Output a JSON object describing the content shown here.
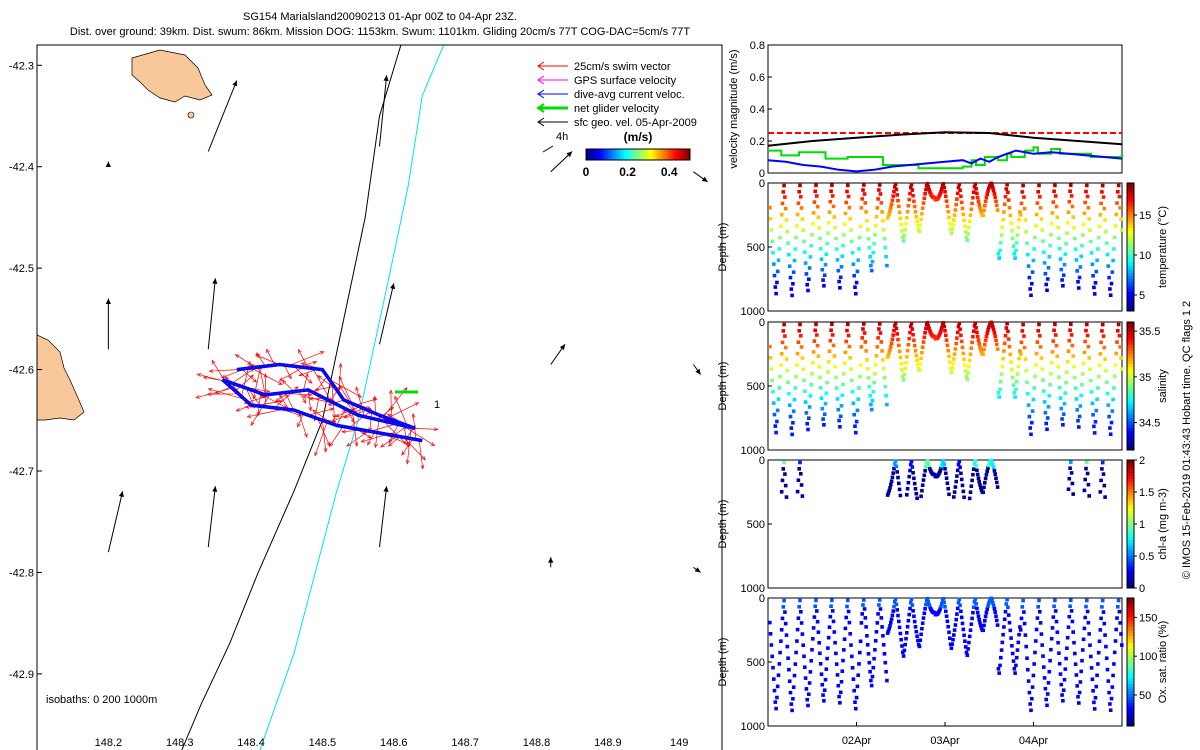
{
  "header": {
    "line1": "SG154 Marialsland20090213 01-Apr 00Z to 04-Apr 23Z.",
    "line2": "Dist. over ground: 39km. Dist. swum: 86km. Mission DOG: 1153km. Swum: 1101km. Gliding 20cm/s 77T COG-DAC=5cm/s 77T"
  },
  "map": {
    "legend": [
      {
        "label": "25cm/s swim vector",
        "color": "#ff0000"
      },
      {
        "label": "GPS surface velocity",
        "color": "#ff00ff"
      },
      {
        "label": "dive-avg current veloc.",
        "color": "#0000ff"
      },
      {
        "label": "net glider velocity",
        "color": "#00dd00"
      },
      {
        "label": "sfc geo. vel. 05-Apr-2009",
        "color": "#000000"
      }
    ],
    "colorbar": {
      "title": "(m/s)",
      "tick_labels": [
        "0",
        "0.2",
        "0.4"
      ],
      "min": 0,
      "max": 0.5
    },
    "hour_label": "4h",
    "isobaths_label": "isobaths: 0   200  1000m",
    "end_marker_label": "1",
    "land_color": "#f9c89a"
  },
  "chart_data": [
    {
      "type": "scatter",
      "name": "map",
      "xlim": [
        148.1,
        149.06
      ],
      "ylim": [
        -42.98,
        -42.28
      ],
      "x_ticks": [
        148.2,
        148.3,
        148.4,
        148.5,
        148.6,
        148.7,
        148.8,
        148.9,
        149
      ],
      "x_tick_labels": [
        "148.2",
        "148.3",
        "148.4",
        "148.5",
        "148.6",
        "148.7",
        "148.8",
        "148.9",
        "149"
      ],
      "y_ticks": [
        -42.3,
        -42.4,
        -42.5,
        -42.6,
        -42.7,
        -42.8,
        -42.9
      ],
      "y_tick_labels": [
        "-42.3",
        "-42.4",
        "-42.5",
        "-42.6",
        "-42.7",
        "-42.8",
        "-42.9"
      ],
      "isobath_200": [
        [
          148.61,
          -42.28
        ],
        [
          148.58,
          -42.35
        ],
        [
          148.56,
          -42.45
        ],
        [
          148.53,
          -42.55
        ],
        [
          148.5,
          -42.65
        ],
        [
          148.46,
          -42.72
        ],
        [
          148.41,
          -42.8
        ],
        [
          148.37,
          -42.87
        ],
        [
          148.33,
          -42.93
        ],
        [
          148.3,
          -42.98
        ]
      ],
      "isobath_1000": [
        [
          148.67,
          -42.28
        ],
        [
          148.64,
          -42.33
        ],
        [
          148.62,
          -42.42
        ],
        [
          148.59,
          -42.52
        ],
        [
          148.55,
          -42.65
        ],
        [
          148.52,
          -42.72
        ],
        [
          148.49,
          -42.8
        ],
        [
          148.46,
          -42.88
        ],
        [
          148.43,
          -42.94
        ],
        [
          148.41,
          -42.98
        ]
      ],
      "track": [
        [
          148.38,
          -42.6
        ],
        [
          148.44,
          -42.595
        ],
        [
          148.5,
          -42.6
        ],
        [
          148.53,
          -42.63
        ],
        [
          148.58,
          -42.645
        ],
        [
          148.63,
          -42.658
        ],
        [
          148.55,
          -42.645
        ],
        [
          148.48,
          -42.62
        ],
        [
          148.42,
          -42.625
        ],
        [
          148.36,
          -42.61
        ],
        [
          148.4,
          -42.635
        ],
        [
          148.46,
          -42.64
        ],
        [
          148.52,
          -42.655
        ],
        [
          148.6,
          -42.665
        ],
        [
          148.64,
          -42.67
        ]
      ],
      "geo_arrows": [
        [
          148.2,
          -42.4,
          0.0,
          0.005
        ],
        [
          148.34,
          -42.385,
          0.04,
          0.07
        ],
        [
          148.58,
          -42.38,
          0.01,
          0.07
        ],
        [
          148.82,
          -42.405,
          0.03,
          0.02
        ],
        [
          149.02,
          -42.405,
          0.02,
          -0.01
        ],
        [
          148.2,
          -42.58,
          0.0,
          0.05
        ],
        [
          148.34,
          -42.58,
          0.01,
          0.07
        ],
        [
          148.58,
          -42.575,
          0.02,
          0.06
        ],
        [
          148.82,
          -42.595,
          0.02,
          0.02
        ],
        [
          149.02,
          -42.595,
          0.01,
          -0.01
        ],
        [
          148.2,
          -42.78,
          0.02,
          0.06
        ],
        [
          148.34,
          -42.775,
          0.01,
          0.06
        ],
        [
          148.58,
          -42.775,
          0.01,
          0.06
        ],
        [
          148.82,
          -42.795,
          0.0,
          0.01
        ],
        [
          149.02,
          -42.795,
          0.01,
          -0.005
        ]
      ]
    },
    {
      "type": "line",
      "name": "velocity",
      "ylabel": "velocity magnitude (m/s)",
      "ylim": [
        0,
        0.8
      ],
      "y_ticks": [
        0,
        0.2,
        0.4,
        0.6,
        0.8
      ],
      "y_tick_labels": [
        "0",
        "0.2",
        "0.4",
        "0.6",
        "0.8"
      ],
      "xlim": [
        0,
        4
      ],
      "series": [
        {
          "color": "#ff0000",
          "dashed": true,
          "x": [
            0,
            4
          ],
          "y": [
            0.25,
            0.25
          ]
        },
        {
          "color": "#000000",
          "x": [
            0,
            0.5,
            1.0,
            1.5,
            2.0,
            2.5,
            3.0,
            3.5,
            4.0
          ],
          "y": [
            0.17,
            0.2,
            0.22,
            0.24,
            0.255,
            0.25,
            0.22,
            0.2,
            0.18
          ]
        },
        {
          "color": "#00dd00",
          "x": [
            0,
            0.1,
            0.15,
            0.3,
            0.35,
            0.6,
            0.65,
            0.9,
            1.2,
            1.3,
            1.6,
            1.7,
            2.2,
            2.3,
            2.35,
            2.45,
            2.6,
            2.7,
            2.75,
            2.9,
            3.0,
            3.05,
            3.2,
            3.3,
            3.6,
            3.65,
            3.95,
            4.0
          ],
          "y": [
            0.14,
            0.14,
            0.11,
            0.11,
            0.13,
            0.13,
            0.09,
            0.1,
            0.1,
            0.05,
            0.05,
            0.03,
            0.04,
            0.08,
            0.05,
            0.1,
            0.08,
            0.12,
            0.1,
            0.14,
            0.16,
            0.12,
            0.15,
            0.12,
            0.12,
            0.1,
            0.1,
            0.12
          ]
        },
        {
          "color": "#0000ff",
          "x": [
            0,
            0.2,
            0.4,
            0.6,
            0.8,
            1.0,
            1.2,
            1.4,
            1.6,
            1.8,
            2.0,
            2.2,
            2.3,
            2.4,
            2.5,
            2.6,
            2.7,
            2.8,
            3.0,
            3.2,
            3.4,
            3.6,
            3.8,
            4.0
          ],
          "y": [
            0.08,
            0.07,
            0.05,
            0.04,
            0.02,
            0.01,
            0.02,
            0.04,
            0.05,
            0.06,
            0.07,
            0.08,
            0.06,
            0.09,
            0.07,
            0.1,
            0.12,
            0.14,
            0.12,
            0.13,
            0.12,
            0.11,
            0.1,
            0.09
          ]
        }
      ]
    },
    {
      "type": "scatter",
      "name": "temperature-section",
      "ylabel": "Depth (m)",
      "y_ticks": [
        0,
        500,
        1000
      ],
      "y_tick_labels": [
        "0",
        "500",
        "1000"
      ],
      "ylim": [
        0,
        1000
      ],
      "xlim": [
        0,
        4
      ],
      "colorbar": {
        "label": "temperature (°C)",
        "min": 3,
        "max": 19,
        "tick_values": [
          5,
          10,
          15
        ],
        "tick_labels": [
          "5",
          "10",
          "15"
        ]
      },
      "surface_value": 18.5,
      "deep_value": 4.5
    },
    {
      "type": "scatter",
      "name": "salinity-section",
      "ylabel": "Depth (m)",
      "y_ticks": [
        0,
        500,
        1000
      ],
      "y_tick_labels": [
        "0",
        "500",
        "1000"
      ],
      "ylim": [
        0,
        1000
      ],
      "xlim": [
        0,
        4
      ],
      "colorbar": {
        "label": "salinity",
        "min": 34.2,
        "max": 35.6,
        "tick_values": [
          34.5,
          35,
          35.5
        ],
        "tick_labels": [
          "34.5",
          "35",
          "35.5"
        ]
      },
      "surface_value": 35.55,
      "deep_value": 34.4
    },
    {
      "type": "scatter",
      "name": "chla-section",
      "ylabel": "Depth (m)",
      "y_ticks": [
        0,
        500,
        1000
      ],
      "y_tick_labels": [
        "0",
        "500",
        "1000"
      ],
      "ylim": [
        0,
        1000
      ],
      "xlim": [
        0,
        4
      ],
      "colorbar": {
        "label": "chl-a (mg m-3)",
        "min": 0,
        "max": 2,
        "tick_values": [
          0,
          0.5,
          1,
          1.5,
          2
        ],
        "tick_labels": [
          "0",
          "0.5",
          "1",
          "1.5",
          "2"
        ]
      },
      "surface_value": 0.8,
      "deep_value": 0.05
    },
    {
      "type": "scatter",
      "name": "oxygen-section",
      "ylabel": "Depth (m)",
      "y_ticks": [
        0,
        500,
        1000
      ],
      "y_tick_labels": [
        "0",
        "500",
        "1000"
      ],
      "ylim": [
        0,
        1000
      ],
      "xlim": [
        0,
        4
      ],
      "x_ticks": [
        1,
        2,
        3
      ],
      "x_tick_labels": [
        "02Apr",
        "03Apr",
        "04Apr"
      ],
      "colorbar": {
        "label": "Ox. sat. ratio (%)",
        "min": 10,
        "max": 175,
        "tick_values": [
          50,
          100,
          150
        ],
        "tick_labels": [
          "50",
          "100",
          "150"
        ]
      },
      "surface_value": 35,
      "deep_value": 30
    }
  ],
  "footer": {
    "credit": "© IMOS 15-Feb-2019 01:43:43 Hobart time. QC flags 1  2"
  }
}
